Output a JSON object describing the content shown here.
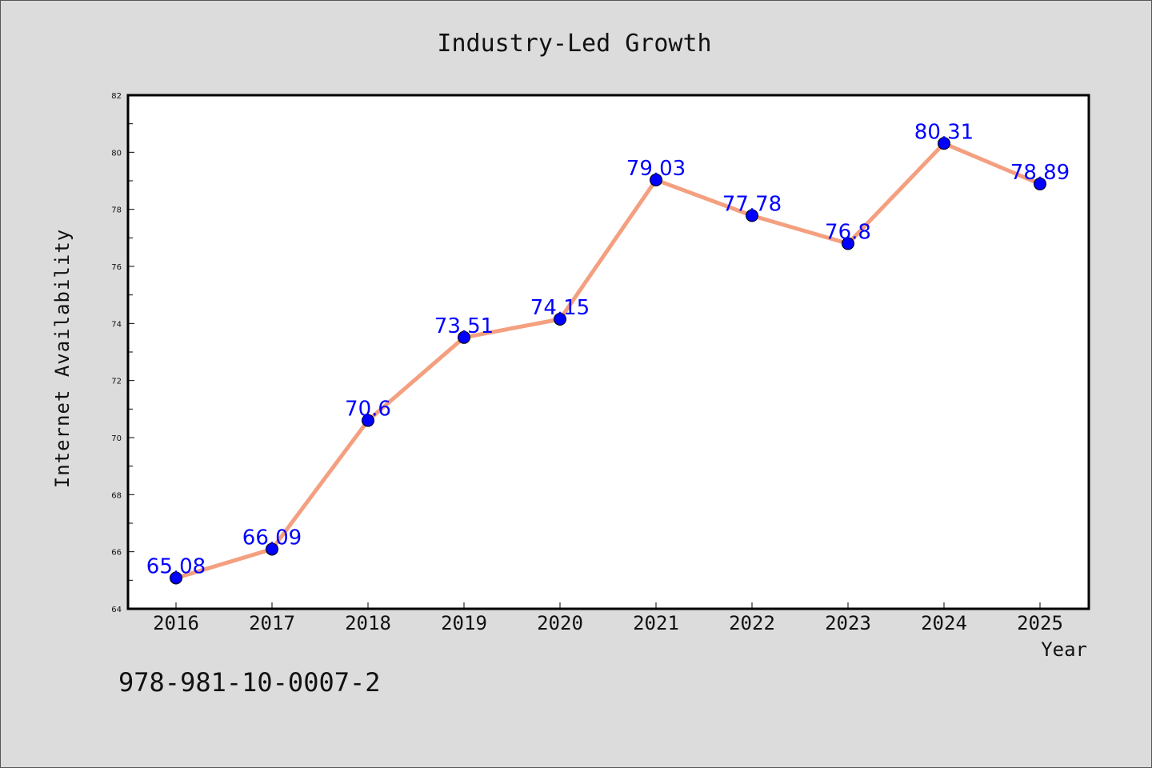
{
  "chart_data": {
    "type": "line",
    "title": "Industry-Led Growth",
    "xlabel": "Year",
    "ylabel": "Internet Availability",
    "categories": [
      "2016",
      "2017",
      "2018",
      "2019",
      "2020",
      "2021",
      "2022",
      "2023",
      "2024",
      "2025"
    ],
    "series": [
      {
        "values": [
          65.08,
          66.09,
          70.6,
          73.51,
          74.15,
          79.03,
          77.78,
          76.8,
          80.31,
          78.89
        ]
      }
    ],
    "data_labels": [
      "65.08",
      "66.09",
      "70.6",
      "73.51",
      "74.15",
      "79.03",
      "77.78",
      "76.8",
      "80.31",
      "78.89"
    ],
    "ylim": [
      64,
      82
    ],
    "yticks": [
      64,
      66,
      68,
      70,
      72,
      74,
      76,
      78,
      80,
      82
    ],
    "grid": false,
    "line_color": "#f4a080",
    "marker_color": "#0000ff",
    "label_color": "#0000ff"
  },
  "footer": {
    "isbn": "978-981-10-0007-2"
  }
}
